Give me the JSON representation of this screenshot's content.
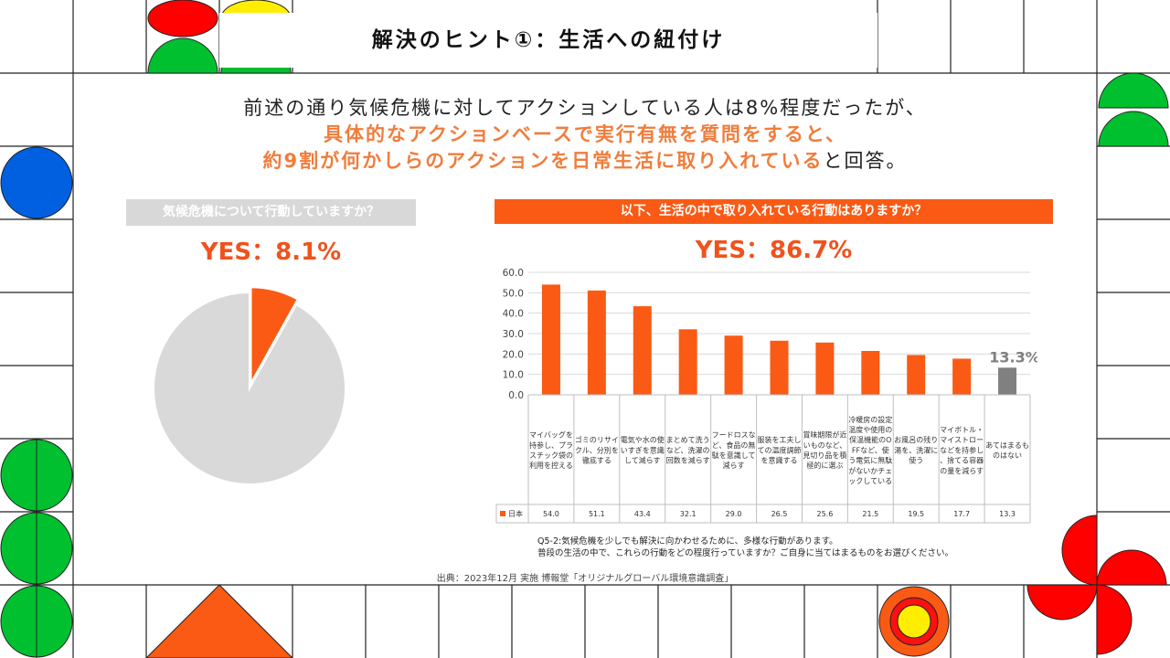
{
  "slide": {
    "title": "解決のヒント①：生活への紐付け",
    "lead_line1": "前述の通り気候危機に対してアクションしている人は8%程度だったが、",
    "lead_line2": "具体的なアクションベースで実行有無を質問をすると、",
    "lead_line3_hl": "約9割が何かしらのアクションを日常生活に取り入れている",
    "lead_line3_tail": "と回答。"
  },
  "left_panel": {
    "question": "気候危機について行動していますか？",
    "result": "YES：8.1%"
  },
  "right_panel": {
    "question": "以下、生活の中で取り入れている行動はありますか？",
    "result": "YES：86.7%"
  },
  "note_line1": "Q5-2:気候危機を少しでも解決に向かわせるために、多様な行動があります。",
  "note_line2": "普段の生活の中で、これらの行動をどの程度行っていますか？ご自身に当てはまるものをお選びください。",
  "source": "出典：2023年12月 実施 博報堂「オリジナルグローバル環境意識調査」",
  "colors": {
    "orange": "#fa5a14",
    "gray_bar": "#808080",
    "pie_gray": "#d9d9d9",
    "pie_orange": "#fa5a14"
  },
  "chart_data": [
    {
      "type": "pie",
      "slices": [
        {
          "label": "YES",
          "value": 8.1,
          "color": "#fa5a14"
        },
        {
          "label": "",
          "value": 91.9,
          "color": "#d9d9d9"
        }
      ]
    },
    {
      "type": "bar",
      "categories": [
        "マイバッグを持参し、プラスチック袋の利用を控える",
        "ゴミのリサイクル、分別を徹底する",
        "電気や水の使いすぎを意識して減らす",
        "まとめて洗うなど、洗濯の回数を減らす",
        "フードロスなど、食品の無駄を意識して減らす",
        "服装を工夫しての温度調節を意識する",
        "賞味期限が近いものなど、見切り品を積極的に選ぶ",
        "冷暖房の設定温度や使用の保温機能のOFFなど、使う電気に無駄がないかチェックしている",
        "お風呂の残り湯を、洗濯に使う",
        "マイボトル・マイストローなどを持参し、捨てる容器の量を減らす",
        "あてはまるものはない"
      ],
      "series": [
        {
          "name": "日本",
          "values": [
            54.0,
            51.1,
            43.4,
            32.1,
            29.0,
            26.5,
            25.6,
            21.5,
            19.5,
            17.7,
            13.3
          ]
        }
      ],
      "table_values": [
        "54.0",
        "51.1",
        "43.4",
        "32.1",
        "29.0",
        "26.5",
        "25.6",
        "21.5",
        "19.5",
        "17.7",
        "13.3"
      ],
      "yticks": [
        "60.0",
        "50.0",
        "40.0",
        "30.0",
        "20.0",
        "10.0",
        "0.0"
      ],
      "ylim": [
        0,
        60
      ],
      "highlight_label": "13.3%",
      "highlight_index": 10
    }
  ]
}
